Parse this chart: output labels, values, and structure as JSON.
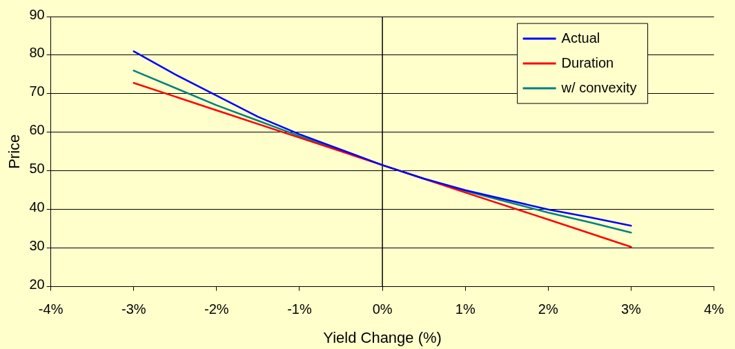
{
  "chart_data": {
    "type": "line",
    "xlabel": "Yield Change (%)",
    "ylabel": "Price",
    "xlim": [
      -4,
      4
    ],
    "xticks": [
      {
        "value": -4,
        "label": "-4%"
      },
      {
        "value": -3,
        "label": "-3%"
      },
      {
        "value": -2,
        "label": "-2%"
      },
      {
        "value": -1,
        "label": "-1%"
      },
      {
        "value": 0,
        "label": "0%"
      },
      {
        "value": 1,
        "label": "1%"
      },
      {
        "value": 2,
        "label": "2%"
      },
      {
        "value": 3,
        "label": "3%"
      },
      {
        "value": 4,
        "label": "4%"
      }
    ],
    "ylim": [
      20,
      90
    ],
    "yticks": [
      20,
      30,
      40,
      50,
      60,
      70,
      80,
      90
    ],
    "grid": "y",
    "legend": "top right",
    "marker": "none",
    "line_style": "solid",
    "ref_lines": [
      {
        "axis": "x",
        "value": 0,
        "color": "#000000"
      }
    ],
    "series": [
      {
        "name": "Actual",
        "color": "#0000ff",
        "x": [
          -3,
          -2.5,
          -2,
          -1.5,
          -1,
          -0.5,
          0,
          0.5,
          1,
          1.5,
          2,
          2.5,
          3
        ],
        "values": [
          81,
          75,
          69.5,
          64,
          59.5,
          55.5,
          51.5,
          48,
          45,
          42.5,
          40,
          38,
          35.8
        ]
      },
      {
        "name": "Duration",
        "color": "#ff0000",
        "x": [
          -3,
          -2,
          -1,
          0,
          1,
          2,
          3
        ],
        "values": [
          72.8,
          65.7,
          58.6,
          51.5,
          44.4,
          37.4,
          30.3
        ]
      },
      {
        "name": "w/ convexity",
        "color": "#008080",
        "x": [
          -3,
          -2.5,
          -2,
          -1.5,
          -1,
          -0.5,
          0,
          0.5,
          1,
          1.5,
          2,
          2.5,
          3
        ],
        "values": [
          76,
          71.5,
          67,
          63,
          59,
          55.3,
          51.5,
          48,
          44.8,
          42,
          39.2,
          36.7,
          34
        ]
      }
    ]
  }
}
